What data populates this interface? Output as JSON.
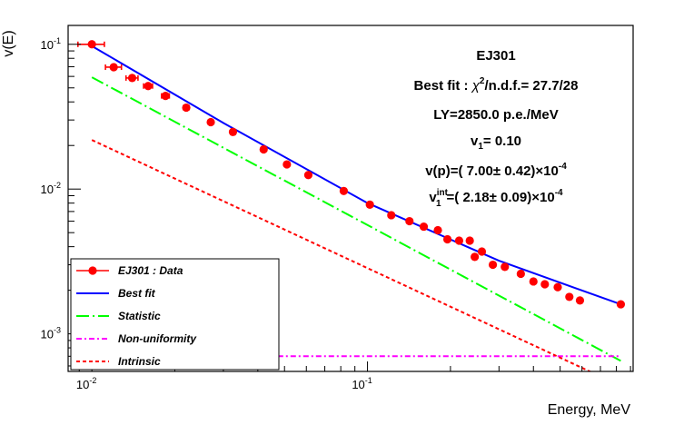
{
  "chart_data": {
    "type": "scatter",
    "scale": {
      "x": "log",
      "y": "log"
    },
    "xlim": [
      0.0082,
      0.92
    ],
    "ylim": [
      0.00055,
      0.135
    ],
    "xlabel": "Energy, MeV",
    "ylabel": "v(E)",
    "x_ticks": [
      {
        "value": 0.01,
        "base": "10",
        "exp": "-2"
      },
      {
        "value": 0.1,
        "base": "10",
        "exp": "-1"
      }
    ],
    "y_ticks": [
      {
        "value": 0.001,
        "base": "10",
        "exp": "-3"
      },
      {
        "value": 0.01,
        "base": "10",
        "exp": "-2"
      },
      {
        "value": 0.1,
        "base": "10",
        "exp": "-1"
      }
    ],
    "annotations": {
      "title": "EJ301",
      "fit_prefix": "Best fit : ",
      "fit_chi": "χ",
      "fit_chi_exp": "2",
      "fit_suffix": "/n.d.f.=   27.7/28",
      "ly": "LY=2850.0 p.e./MeV",
      "v1_pre": "v",
      "v1_sub": "1",
      "v1_post": "= 0.10",
      "vp_text": "v(p)=( 7.00± 0.42)×10",
      "vp_exp": "-4",
      "vint_pre": "v",
      "vint_sup": "int",
      "vint_sub": "1",
      "vint_mid": "=( 2.18± 0.09)×10",
      "vint_exp": "-4"
    },
    "legend": {
      "position": "bottom-left",
      "entries": [
        {
          "label": "EJ301 : Data",
          "color": "#ff0000",
          "style": "marker"
        },
        {
          "label": "Best fit",
          "color": "#0000ff",
          "style": "solid"
        },
        {
          "label": "Statistic",
          "color": "#00ff00",
          "style": "longdash"
        },
        {
          "label": "Non-uniformity",
          "color": "#ff00ff",
          "style": "dashdot"
        },
        {
          "label": "Intrinsic",
          "color": "#ff0000",
          "style": "dotted"
        }
      ]
    },
    "series": [
      {
        "name": "EJ301 : Data",
        "color": "#ff0000",
        "kind": "points",
        "points": [
          {
            "x": 0.01,
            "y": 0.1,
            "xerr": 0.0011
          },
          {
            "x": 0.012,
            "y": 0.0695,
            "xerr": 0.0008
          },
          {
            "x": 0.014,
            "y": 0.0585,
            "xerr": 0.0007
          },
          {
            "x": 0.016,
            "y": 0.0515,
            "xerr": 0.0006
          },
          {
            "x": 0.0185,
            "y": 0.044,
            "xerr": 0.0006
          },
          {
            "x": 0.022,
            "y": 0.0365,
            "xerr": 0.0005
          },
          {
            "x": 0.027,
            "y": 0.029,
            "xerr": 0.0004
          },
          {
            "x": 0.0325,
            "y": 0.0248,
            "xerr": 0.0004
          },
          {
            "x": 0.042,
            "y": 0.0188
          },
          {
            "x": 0.051,
            "y": 0.0148
          },
          {
            "x": 0.061,
            "y": 0.0125
          },
          {
            "x": 0.082,
            "y": 0.0097
          },
          {
            "x": 0.102,
            "y": 0.0078
          },
          {
            "x": 0.122,
            "y": 0.0066
          },
          {
            "x": 0.142,
            "y": 0.006
          },
          {
            "x": 0.16,
            "y": 0.0055
          },
          {
            "x": 0.18,
            "y": 0.0052
          },
          {
            "x": 0.195,
            "y": 0.0045
          },
          {
            "x": 0.215,
            "y": 0.0044
          },
          {
            "x": 0.235,
            "y": 0.0044
          },
          {
            "x": 0.245,
            "y": 0.0034
          },
          {
            "x": 0.26,
            "y": 0.0037
          },
          {
            "x": 0.285,
            "y": 0.003
          },
          {
            "x": 0.315,
            "y": 0.0029
          },
          {
            "x": 0.36,
            "y": 0.0026
          },
          {
            "x": 0.4,
            "y": 0.0023
          },
          {
            "x": 0.44,
            "y": 0.0022
          },
          {
            "x": 0.49,
            "y": 0.0021
          },
          {
            "x": 0.54,
            "y": 0.0018
          },
          {
            "x": 0.59,
            "y": 0.0017
          },
          {
            "x": 0.83,
            "y": 0.0016
          }
        ]
      },
      {
        "name": "Best fit",
        "color": "#0000ff",
        "kind": "curve",
        "points": [
          {
            "x": 0.01,
            "y": 0.0972
          },
          {
            "x": 0.03,
            "y": 0.0286
          },
          {
            "x": 0.1,
            "y": 0.008
          },
          {
            "x": 0.3,
            "y": 0.0032
          },
          {
            "x": 0.83,
            "y": 0.0016
          }
        ]
      },
      {
        "name": "Statistic",
        "color": "#00ff00",
        "kind": "curve",
        "points": [
          {
            "x": 0.01,
            "y": 0.0592
          },
          {
            "x": 0.83,
            "y": 0.00065
          }
        ]
      },
      {
        "name": "Non-uniformity",
        "color": "#ff00ff",
        "kind": "curve",
        "points": [
          {
            "x": 0.0425,
            "y": 0.0007
          },
          {
            "x": 0.83,
            "y": 0.0007
          }
        ]
      },
      {
        "name": "Intrinsic",
        "color": "#ff0000",
        "kind": "curve",
        "points": [
          {
            "x": 0.01,
            "y": 0.0218
          },
          {
            "x": 0.69,
            "y": 0.000515
          }
        ]
      }
    ]
  }
}
